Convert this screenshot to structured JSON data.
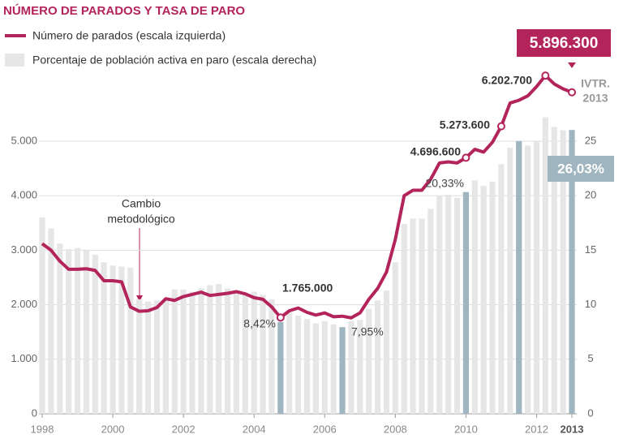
{
  "chart_data": {
    "type": "line-bar",
    "title": "NÚMERO DE PARADOS Y TASA DE PARO",
    "x": [
      1998,
      1998.25,
      1998.5,
      1998.75,
      1999,
      1999.25,
      1999.5,
      1999.75,
      2000,
      2000.25,
      2000.5,
      2000.75,
      2001,
      2001.25,
      2001.5,
      2001.75,
      2002,
      2002.25,
      2002.5,
      2002.75,
      2003,
      2003.25,
      2003.5,
      2003.75,
      2004,
      2004.25,
      2004.5,
      2004.75,
      2005,
      2005.25,
      2005.5,
      2005.75,
      2006,
      2006.25,
      2006.5,
      2006.75,
      2007,
      2007.25,
      2007.5,
      2007.75,
      2008,
      2008.25,
      2008.5,
      2008.75,
      2009,
      2009.25,
      2009.5,
      2009.75,
      2010,
      2010.25,
      2010.5,
      2010.75,
      2011,
      2011.25,
      2011.5,
      2011.75,
      2012,
      2012.25,
      2012.5,
      2012.75,
      2013
    ],
    "series": [
      {
        "name": "Número de parados (escala izquierda)",
        "color": "#b3245a",
        "axis": "y",
        "values": [
          3120000,
          3000000,
          2800000,
          2650000,
          2650000,
          2660000,
          2630000,
          2440000,
          2440000,
          2420000,
          1960000,
          1880000,
          1890000,
          1950000,
          2110000,
          2080000,
          2150000,
          2190000,
          2230000,
          2170000,
          2190000,
          2210000,
          2240000,
          2200000,
          2130000,
          2100000,
          1960000,
          1765000,
          1890000,
          1940000,
          1860000,
          1810000,
          1850000,
          1780000,
          1790000,
          1760000,
          1850000,
          2100000,
          2300000,
          2600000,
          3200000,
          4000000,
          4100000,
          4100000,
          4300000,
          4600000,
          4620000,
          4600000,
          4696600,
          4850000,
          4800000,
          4980000,
          5273600,
          5700000,
          5750000,
          5830000,
          6000000,
          6202700,
          6050000,
          5960000,
          5896300
        ],
        "value_labels": [
          null,
          null,
          null,
          null,
          null,
          null,
          null,
          null,
          null,
          null,
          null,
          null,
          null,
          null,
          null,
          null,
          null,
          null,
          null,
          null,
          null,
          null,
          null,
          null,
          null,
          null,
          null,
          "1.765.000",
          null,
          null,
          null,
          null,
          null,
          null,
          null,
          null,
          null,
          null,
          null,
          null,
          null,
          null,
          null,
          null,
          null,
          null,
          null,
          null,
          "4.696.600",
          null,
          null,
          null,
          "5.273.600",
          null,
          null,
          null,
          null,
          "6.202.700",
          null,
          null,
          "5.896.300"
        ]
      },
      {
        "name": "Porcentaje de población activa en paro (escala derecha)",
        "color": "#e6e6e6",
        "highlight_color": "#9fb5bf",
        "axis": "y2",
        "values": [
          18.0,
          17.0,
          15.6,
          15.1,
          15.2,
          15.0,
          14.6,
          13.9,
          13.6,
          13.5,
          13.4,
          10.5,
          10.3,
          10.4,
          10.6,
          11.4,
          11.4,
          11.2,
          11.5,
          11.8,
          11.9,
          11.5,
          11.3,
          11.1,
          11.2,
          10.9,
          10.5,
          8.42,
          9.3,
          9.0,
          8.7,
          8.3,
          8.5,
          8.2,
          7.95,
          8.5,
          8.6,
          9.6,
          10.4,
          11.3,
          13.9,
          17.4,
          17.9,
          17.9,
          18.8,
          20.0,
          20.1,
          19.8,
          20.33,
          21.4,
          20.9,
          21.3,
          22.9,
          24.4,
          25.0,
          24.6,
          25.0,
          27.2,
          26.3,
          26.0,
          26.03
        ],
        "value_labels": [
          null,
          null,
          null,
          null,
          null,
          null,
          null,
          null,
          null,
          null,
          null,
          null,
          null,
          null,
          null,
          null,
          null,
          null,
          null,
          null,
          null,
          null,
          null,
          null,
          null,
          null,
          null,
          "8,42%",
          null,
          null,
          null,
          null,
          null,
          null,
          "7,95%",
          null,
          null,
          null,
          null,
          null,
          null,
          null,
          null,
          null,
          null,
          null,
          null,
          null,
          "20,33%",
          null,
          null,
          null,
          null,
          null,
          null,
          null,
          null,
          null,
          null,
          null,
          "26,03%"
        ],
        "highlighted": [
          27,
          34,
          48,
          54,
          60
        ]
      }
    ],
    "xlim": [
      1998,
      2013
    ],
    "xticks": [
      1998,
      2000,
      2002,
      2004,
      2006,
      2008,
      2010,
      2012,
      2013
    ],
    "ylim": [
      0,
      6500000
    ],
    "yticks": [
      0,
      {
        "value": 1000000,
        "label": "1.000"
      },
      {
        "value": 2000000,
        "label": "2.000"
      },
      {
        "value": 3000000,
        "label": "3.000"
      },
      {
        "value": 4000000,
        "label": "4.000"
      },
      {
        "value": 5000000,
        "label": "5.000"
      }
    ],
    "y2lim": [
      0,
      32.5
    ],
    "y2ticks": [
      0,
      5,
      10,
      15,
      20,
      25
    ],
    "grid": true,
    "note_change": [
      "Cambio",
      "metodológico"
    ],
    "note_quarter": [
      "IVTR.",
      "2013"
    ]
  }
}
